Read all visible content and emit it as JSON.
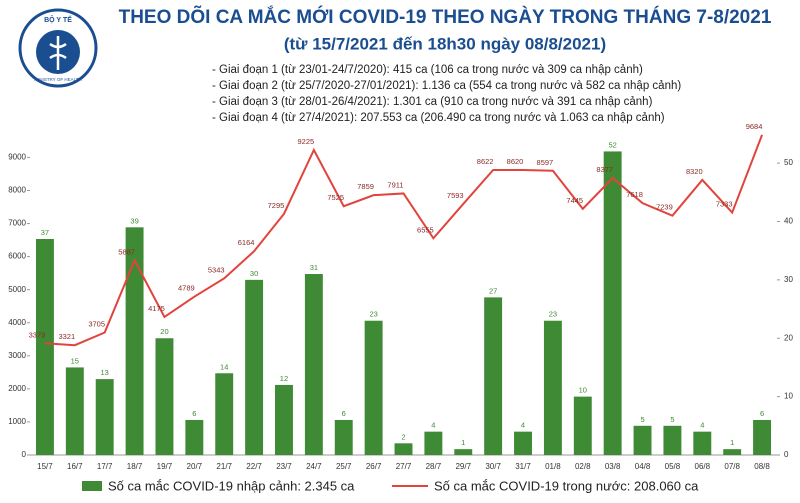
{
  "logo": {
    "name": "BỘ Y TẾ",
    "subtitle": "MINISTRY OF HEALTH"
  },
  "chart_data": {
    "type": "combo",
    "title": "THEO DÕI CA MẮC MỚI COVID-19 THEO NGÀY TRONG THÁNG 7-8/2021",
    "subtitle": "(từ 15/7/2021 đến 18h30 ngày 08/8/2021)",
    "notes": [
      "- Giai đoạn 1 (từ 23/01-24/7/2020): 415 ca (106 ca trong nước và 309 ca nhập cảnh)",
      "- Giai đoạn 2 (từ 25/7/2020-27/01/2021): 1.136 ca (554 ca trong nước và 582 ca nhập cảnh)",
      "- Giai đoạn 3 (từ 28/01-26/4/2021): 1.301 ca (910 ca trong nước và 391 ca nhập cảnh)",
      "- Giai đoạn 4 (từ 27/4/2021): 207.553 ca (206.490 ca trong nước và 1.063 ca nhập cảnh)"
    ],
    "categories": [
      "15/7",
      "16/7",
      "17/7",
      "18/7",
      "19/7",
      "20/7",
      "21/7",
      "22/7",
      "23/7",
      "24/7",
      "25/7",
      "26/7",
      "27/7",
      "28/7",
      "29/7",
      "30/7",
      "31/7",
      "01/8",
      "02/8",
      "03/8",
      "04/8",
      "05/8",
      "06/8",
      "07/8",
      "08/8"
    ],
    "series": [
      {
        "name": "Số ca mắc COVID-19 nhập cảnh: 2.345 ca",
        "kind": "bar",
        "axis": "y2",
        "color": "#3f8a34",
        "values": [
          37,
          15,
          13,
          39,
          20,
          6,
          14,
          30,
          12,
          31,
          6,
          23,
          2,
          4,
          1,
          27,
          4,
          23,
          10,
          52,
          5,
          5,
          4,
          1,
          6
        ]
      },
      {
        "name": "Số ca mắc COVID-19 trong nước: 208.060 ca",
        "kind": "line",
        "axis": "y",
        "color": "#e2433c",
        "values": [
          3379,
          3321,
          3705,
          5887,
          4175,
          4789,
          5343,
          6164,
          7295,
          9225,
          7525,
          7859,
          7911,
          6555,
          7593,
          8622,
          8620,
          8597,
          7445,
          8377,
          7618,
          7239,
          8320,
          7333,
          9684
        ]
      }
    ],
    "ylim": [
      0,
      9800
    ],
    "yticks": [
      0,
      1000,
      2000,
      3000,
      4000,
      5000,
      6000,
      7000,
      8000,
      9000
    ],
    "y2lim": [
      0,
      55.5
    ],
    "y2ticks": [
      0,
      10,
      20,
      30,
      40,
      50
    ]
  }
}
